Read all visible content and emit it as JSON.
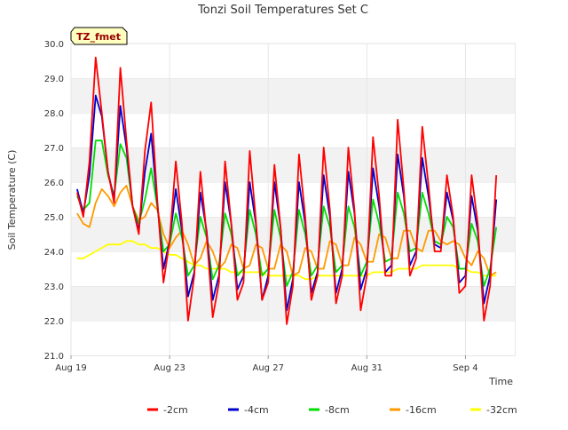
{
  "chart_data": {
    "type": "line",
    "title": "Tonzi Soil Temperatures Set C",
    "xlabel": "Time",
    "ylabel": "Soil Temperature (C)",
    "annotation": "TZ_fmet",
    "x_unit": "days from Aug 19 (sampled every 0.25 day)",
    "xlim": [
      0,
      18
    ],
    "ylim": [
      21.0,
      30.0
    ],
    "xticks": [
      {
        "value": 0,
        "label": "Aug 19"
      },
      {
        "value": 4,
        "label": "Aug 23"
      },
      {
        "value": 8,
        "label": "Aug 27"
      },
      {
        "value": 12,
        "label": "Aug 31"
      },
      {
        "value": 16,
        "label": "Sep 4"
      }
    ],
    "yticks": [
      21.0,
      22.0,
      23.0,
      24.0,
      25.0,
      26.0,
      27.0,
      28.0,
      29.0,
      30.0
    ],
    "grid": true,
    "legend_position": "bottom",
    "x": [
      0.25,
      0.5,
      0.75,
      1.0,
      1.25,
      1.5,
      1.75,
      2.0,
      2.25,
      2.5,
      2.75,
      3.0,
      3.25,
      3.5,
      3.75,
      4.0,
      4.25,
      4.5,
      4.75,
      5.0,
      5.25,
      5.5,
      5.75,
      6.0,
      6.25,
      6.5,
      6.75,
      7.0,
      7.25,
      7.5,
      7.75,
      8.0,
      8.25,
      8.5,
      8.75,
      9.0,
      9.25,
      9.5,
      9.75,
      10.0,
      10.25,
      10.5,
      10.75,
      11.0,
      11.25,
      11.5,
      11.75,
      12.0,
      12.25,
      12.5,
      12.75,
      13.0,
      13.25,
      13.5,
      13.75,
      14.0,
      14.25,
      14.5,
      14.75,
      15.0,
      15.25,
      15.5,
      15.75,
      16.0,
      16.25,
      16.5,
      16.75,
      17.0,
      17.25
    ],
    "series": [
      {
        "name": "-2cm",
        "color": "#ff0000",
        "values": [
          25.7,
          25.0,
          26.6,
          29.6,
          28.0,
          26.3,
          25.4,
          29.3,
          27.2,
          25.3,
          24.5,
          26.9,
          28.3,
          25.5,
          23.1,
          24.3,
          26.6,
          24.8,
          22.0,
          23.3,
          26.3,
          24.5,
          22.1,
          23.1,
          26.6,
          24.8,
          22.6,
          23.1,
          26.9,
          24.9,
          22.6,
          23.1,
          26.5,
          24.7,
          21.9,
          23.0,
          26.8,
          25.0,
          22.6,
          23.3,
          27.0,
          25.2,
          22.5,
          23.3,
          27.0,
          25.2,
          22.3,
          23.3,
          27.3,
          25.6,
          23.3,
          23.3,
          27.8,
          25.8,
          23.3,
          23.8,
          27.6,
          25.9,
          24.0,
          24.0,
          26.2,
          25.0,
          22.8,
          23.0,
          26.2,
          24.8,
          22.0,
          23.0,
          26.2
        ]
      },
      {
        "name": "-4cm",
        "color": "#0000cc",
        "values": [
          25.8,
          25.1,
          26.2,
          28.5,
          27.9,
          26.3,
          25.5,
          28.2,
          27.0,
          25.3,
          24.6,
          26.3,
          27.4,
          25.4,
          23.5,
          24.3,
          25.8,
          24.6,
          22.7,
          23.4,
          25.7,
          24.6,
          22.6,
          23.3,
          26.0,
          24.8,
          22.9,
          23.3,
          26.0,
          24.8,
          22.6,
          23.3,
          26.0,
          24.7,
          22.3,
          23.2,
          26.0,
          24.8,
          22.8,
          23.4,
          26.2,
          25.0,
          22.8,
          23.5,
          26.3,
          25.1,
          22.9,
          23.5,
          26.4,
          25.3,
          23.4,
          23.6,
          26.8,
          25.6,
          23.6,
          24.0,
          26.7,
          25.6,
          24.2,
          24.1,
          25.7,
          24.9,
          23.1,
          23.3,
          25.6,
          24.6,
          22.5,
          23.3,
          25.5
        ]
      },
      {
        "name": "-8cm",
        "color": "#00dd00",
        "values": [
          25.6,
          25.2,
          25.4,
          27.2,
          27.2,
          26.2,
          25.6,
          27.1,
          26.7,
          25.3,
          24.8,
          25.5,
          26.4,
          25.3,
          24.0,
          24.2,
          25.1,
          24.4,
          23.3,
          23.6,
          25.0,
          24.4,
          23.2,
          23.6,
          25.1,
          24.5,
          23.3,
          23.5,
          25.2,
          24.5,
          23.3,
          23.5,
          25.2,
          24.4,
          23.0,
          23.4,
          25.2,
          24.5,
          23.3,
          23.6,
          25.3,
          24.7,
          23.4,
          23.6,
          25.3,
          24.7,
          23.3,
          23.7,
          25.5,
          24.8,
          23.7,
          23.8,
          25.7,
          25.1,
          24.0,
          24.1,
          25.7,
          25.1,
          24.3,
          24.2,
          25.0,
          24.7,
          23.5,
          23.5,
          24.8,
          24.3,
          23.0,
          23.5,
          24.7
        ]
      },
      {
        "name": "-16cm",
        "color": "#ff9900",
        "values": [
          25.1,
          24.8,
          24.7,
          25.4,
          25.8,
          25.6,
          25.3,
          25.7,
          25.9,
          25.3,
          24.9,
          25.0,
          25.4,
          25.2,
          24.5,
          24.1,
          24.4,
          24.6,
          24.2,
          23.6,
          23.8,
          24.3,
          24.0,
          23.5,
          23.7,
          24.2,
          24.1,
          23.5,
          23.6,
          24.2,
          24.1,
          23.5,
          23.5,
          24.2,
          24.0,
          23.3,
          23.4,
          24.1,
          24.0,
          23.5,
          23.5,
          24.3,
          24.2,
          23.6,
          23.6,
          24.4,
          24.2,
          23.7,
          23.7,
          24.5,
          24.4,
          23.8,
          23.8,
          24.6,
          24.6,
          24.1,
          24.0,
          24.6,
          24.6,
          24.3,
          24.2,
          24.3,
          24.2,
          23.8,
          23.6,
          24.0,
          23.8,
          23.3,
          23.4
        ]
      },
      {
        "name": "-32cm",
        "color": "#ffff00",
        "values": [
          23.8,
          23.8,
          23.9,
          24.0,
          24.1,
          24.2,
          24.2,
          24.2,
          24.3,
          24.3,
          24.2,
          24.2,
          24.1,
          24.1,
          24.0,
          23.9,
          23.9,
          23.8,
          23.7,
          23.6,
          23.6,
          23.5,
          23.5,
          23.5,
          23.5,
          23.4,
          23.4,
          23.4,
          23.4,
          23.4,
          23.4,
          23.3,
          23.3,
          23.3,
          23.3,
          23.3,
          23.3,
          23.2,
          23.2,
          23.3,
          23.3,
          23.3,
          23.3,
          23.3,
          23.3,
          23.3,
          23.3,
          23.3,
          23.4,
          23.4,
          23.4,
          23.4,
          23.5,
          23.5,
          23.5,
          23.5,
          23.6,
          23.6,
          23.6,
          23.6,
          23.6,
          23.6,
          23.5,
          23.5,
          23.4,
          23.4,
          23.3,
          23.3,
          23.3
        ]
      }
    ]
  }
}
